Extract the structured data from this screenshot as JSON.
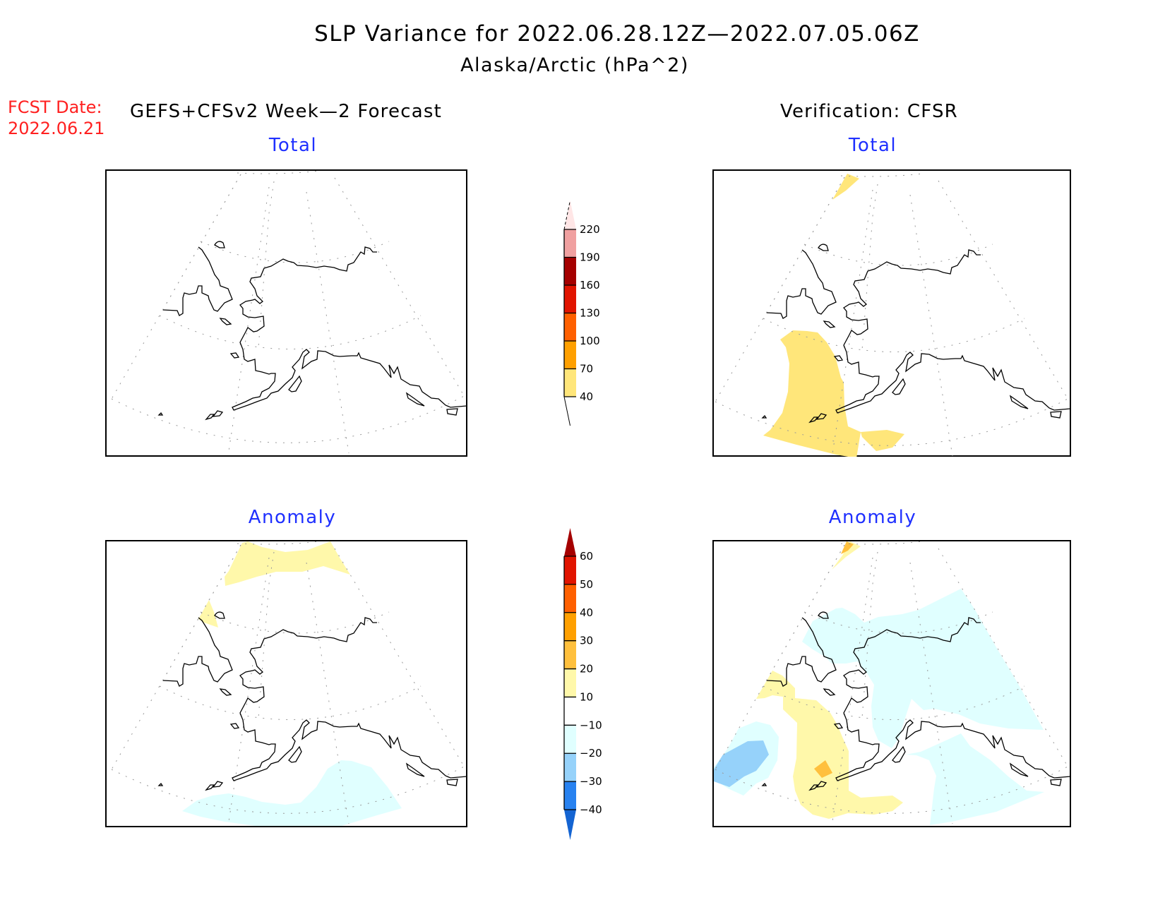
{
  "header": {
    "title": "SLP Variance for 2022.06.28.12Z—2022.07.05.06Z",
    "subtitle": "Alaska/Arctic (hPa^2)",
    "fcst_label": "FCST Date:",
    "fcst_date": "2022.06.21",
    "forecast_label": "GEFS+CFSv2 Week—2 Forecast",
    "verification_label": "Verification: CFSR"
  },
  "panels": {
    "forecast_total": {
      "title": "Total"
    },
    "verification_total": {
      "title": "Total"
    },
    "forecast_anomaly": {
      "title": "Anomaly"
    },
    "verification_anomaly": {
      "title": "Anomaly"
    }
  },
  "chart_data": [
    {
      "type": "heatmap",
      "name": "total_colorbar",
      "levels": [
        40,
        70,
        100,
        130,
        160,
        190,
        220
      ],
      "level_labels": [
        "40",
        "70",
        "100",
        "130",
        "160",
        "190",
        "220"
      ],
      "colors": [
        "#ffffff",
        "#ffe67a",
        "#ffa000",
        "#ff6000",
        "#e11400",
        "#a50000",
        "#f0a0a0",
        "#ffe6e6"
      ]
    },
    {
      "type": "heatmap",
      "name": "anomaly_colorbar",
      "levels": [
        -40,
        -30,
        -20,
        -10,
        10,
        20,
        30,
        40,
        50,
        60
      ],
      "level_labels": [
        "−40",
        "−30",
        "−20",
        "−10",
        "10",
        "20",
        "30",
        "40",
        "50",
        "60"
      ],
      "colors": [
        "#1464d2",
        "#2882f0",
        "#96d2fa",
        "#e0ffff",
        "#ffffff",
        "#fff8aa",
        "#ffc03d",
        "#ffa000",
        "#ff6000",
        "#e11400",
        "#a50000"
      ]
    }
  ]
}
